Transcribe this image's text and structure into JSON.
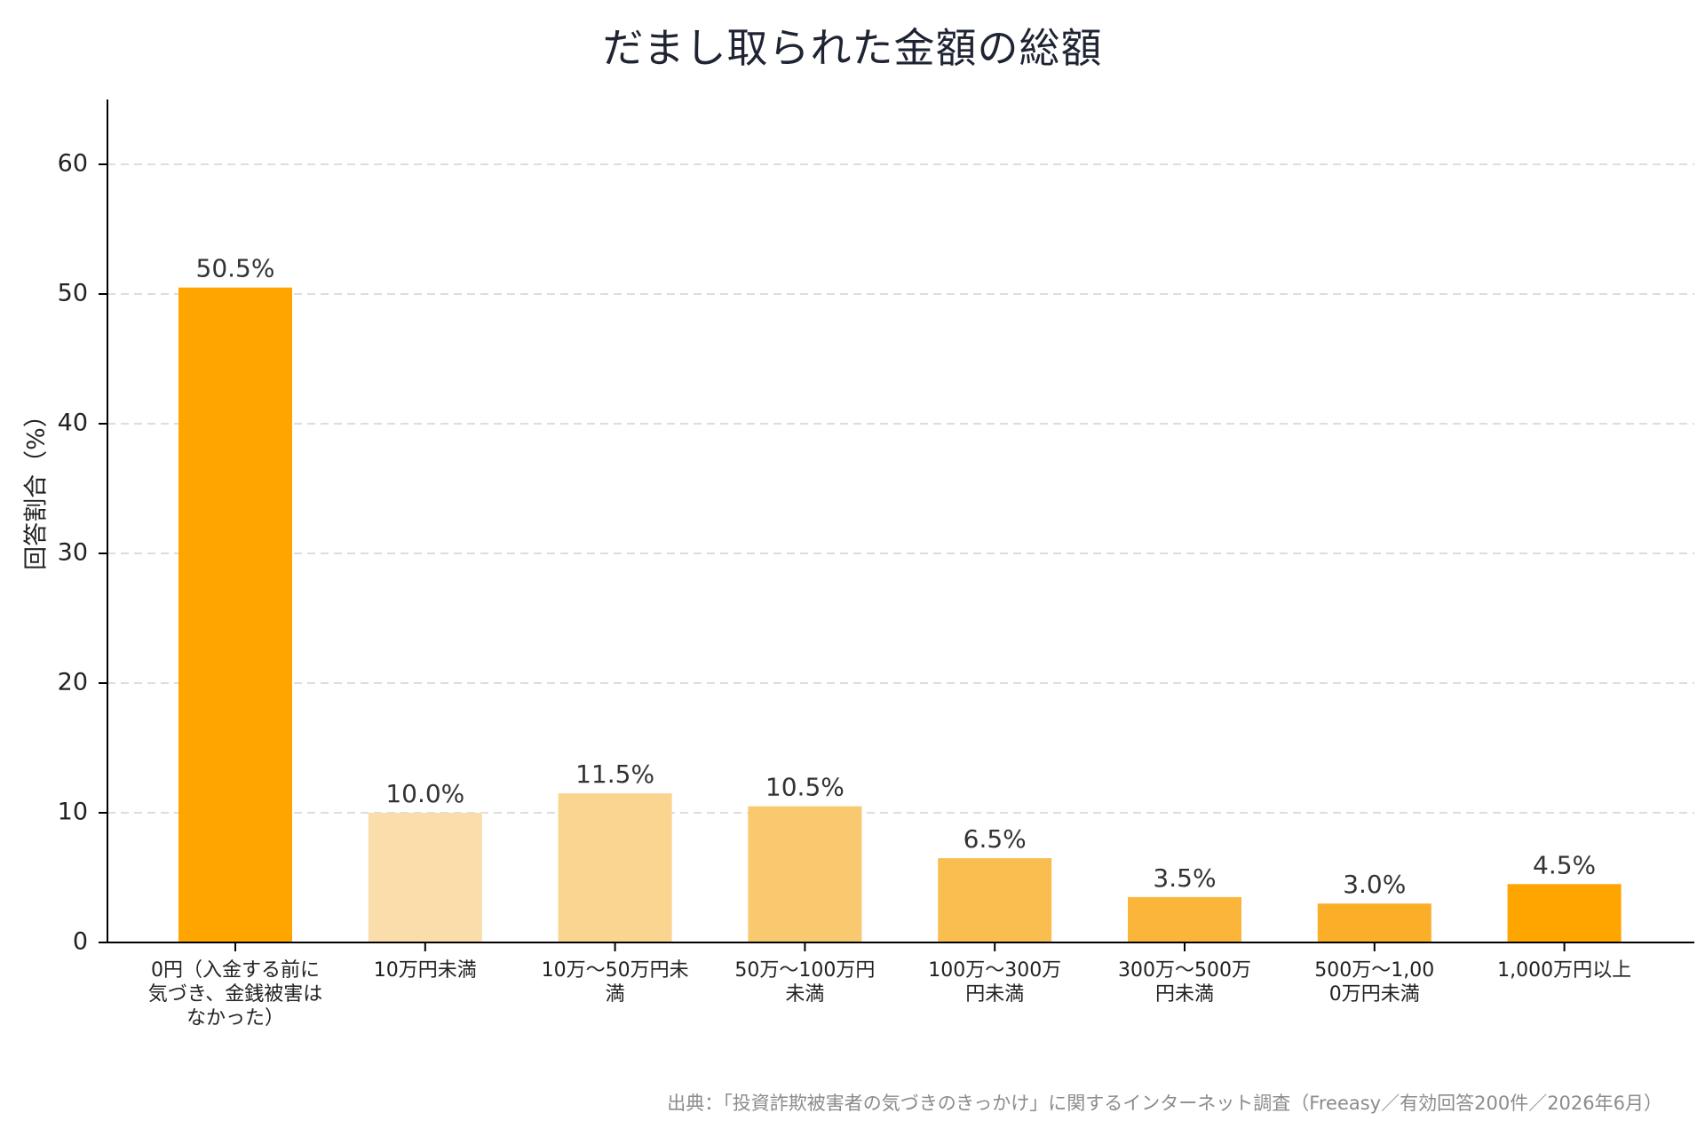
{
  "chart_data": {
    "type": "bar",
    "title": "だまし取られた金額の総額",
    "xlabel": "",
    "ylabel": "回答割合（%）",
    "ylim": [
      0,
      65
    ],
    "yticks": [
      0,
      10,
      20,
      30,
      40,
      50,
      60
    ],
    "grid": true,
    "categories": [
      "0円（入金する前に気づき、金銭被害はなかった）",
      "10万円未満",
      "10万～50万円未満",
      "50万～100万円未満",
      "100万～300万円未満",
      "300万～500万円未満",
      "500万～1,000万円未満",
      "1,000万円以上"
    ],
    "category_lines": [
      [
        "0円（入金する前に",
        "気づき、金銭被害は",
        "なかった）"
      ],
      [
        "10万円未満"
      ],
      [
        "10万～50万円未",
        "満"
      ],
      [
        "50万～100万円",
        "未満"
      ],
      [
        "100万～300万",
        "円未満"
      ],
      [
        "300万～500万",
        "円未満"
      ],
      [
        "500万～1,00",
        "0万円未満"
      ],
      [
        "1,000万円以上"
      ]
    ],
    "values": [
      50.5,
      10.0,
      11.5,
      10.5,
      6.5,
      3.5,
      3.0,
      4.5
    ],
    "value_labels": [
      "50.5%",
      "10.0%",
      "11.5%",
      "10.5%",
      "6.5%",
      "3.5%",
      "3.0%",
      "4.5%"
    ],
    "colors": [
      "#FFA500",
      "#FADDAA",
      "#F9D590",
      "#F9C96F",
      "#FABE50",
      "#FAB53A",
      "#FBAE28",
      "#FFA500"
    ]
  },
  "source": "出典：「投資詐欺被害者の気づきのきっかけ」に関するインターネット調査（Freeasy／有効回答200件／2026年6月）"
}
